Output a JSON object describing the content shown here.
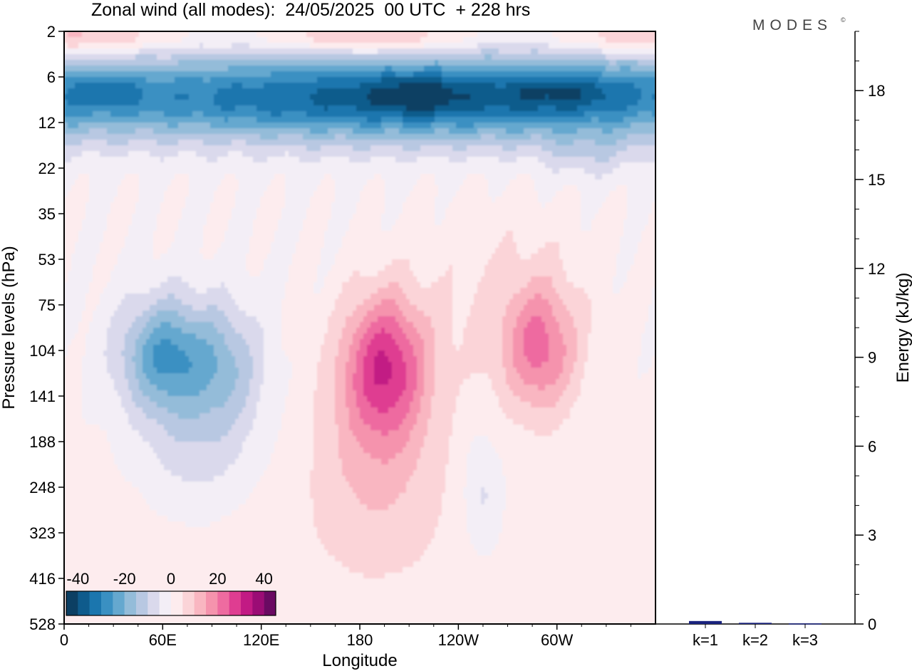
{
  "chart_data": [
    {
      "type": "heatmap",
      "title": "Zonal wind (all modes):  24/05/2025  00 UTC  + 228 hrs",
      "xlabel": "Longitude",
      "ylabel": "Pressure levels (hPa)",
      "x_ticks": [
        "0",
        "60E",
        "120E",
        "180",
        "120W",
        "60W"
      ],
      "x_tick_values": [
        0,
        60,
        120,
        180,
        240,
        300
      ],
      "xlim": [
        0,
        360
      ],
      "y_ticks": [
        "2",
        "6",
        "12",
        "22",
        "35",
        "53",
        "75",
        "104",
        "141",
        "188",
        "248",
        "323",
        "416",
        "528"
      ],
      "y_scale": "pressure levels (top to bottom)",
      "colorbar": {
        "tick_labels": [
          "-40",
          "-20",
          "0",
          "20",
          "40"
        ],
        "tick_values": [
          -40,
          -20,
          0,
          20,
          40
        ],
        "range": [
          -45,
          45
        ],
        "step": 5,
        "colors": [
          "#0c3f63",
          "#0f5b8c",
          "#1b76ae",
          "#3a90c2",
          "#65a8cf",
          "#94bcd9",
          "#b8c8e2",
          "#dad9ec",
          "#f3eef6",
          "#fdecee",
          "#fbd4d8",
          "#f9b6c1",
          "#f593ad",
          "#ee6ba0",
          "#df3d91",
          "#c21a84",
          "#9b0c75",
          "#6a0a62"
        ]
      },
      "features": [
        {
          "lon": 215,
          "lev": 1.5,
          "value": -43
        },
        {
          "lon": 305,
          "lev": 1.3,
          "value": -44
        },
        {
          "lon": 25,
          "lev": 1.3,
          "value": -42
        },
        {
          "lon": 60,
          "lev": 7.0,
          "value": -25
        },
        {
          "lon": 195,
          "lev": 7.3,
          "value": 26
        },
        {
          "lon": 290,
          "lev": 7.0,
          "value": 18
        },
        {
          "lon": 255,
          "lev": 10.2,
          "value": -7
        },
        {
          "lon": 110,
          "lev": 9.5,
          "value": -8
        }
      ]
    },
    {
      "type": "bar",
      "categories": [
        "k=1",
        "k=2",
        "k=3"
      ],
      "values": [
        0.1,
        0.04,
        0.02
      ],
      "ylabel": "Energy (kJ/kg)",
      "y_ticks": [
        "0",
        "3",
        "6",
        "9",
        "12",
        "15",
        "18"
      ],
      "ylim": [
        0,
        20
      ]
    }
  ],
  "logo_text": "MODES",
  "colors": {
    "bar": "#1a237e",
    "frame": "#000000"
  }
}
